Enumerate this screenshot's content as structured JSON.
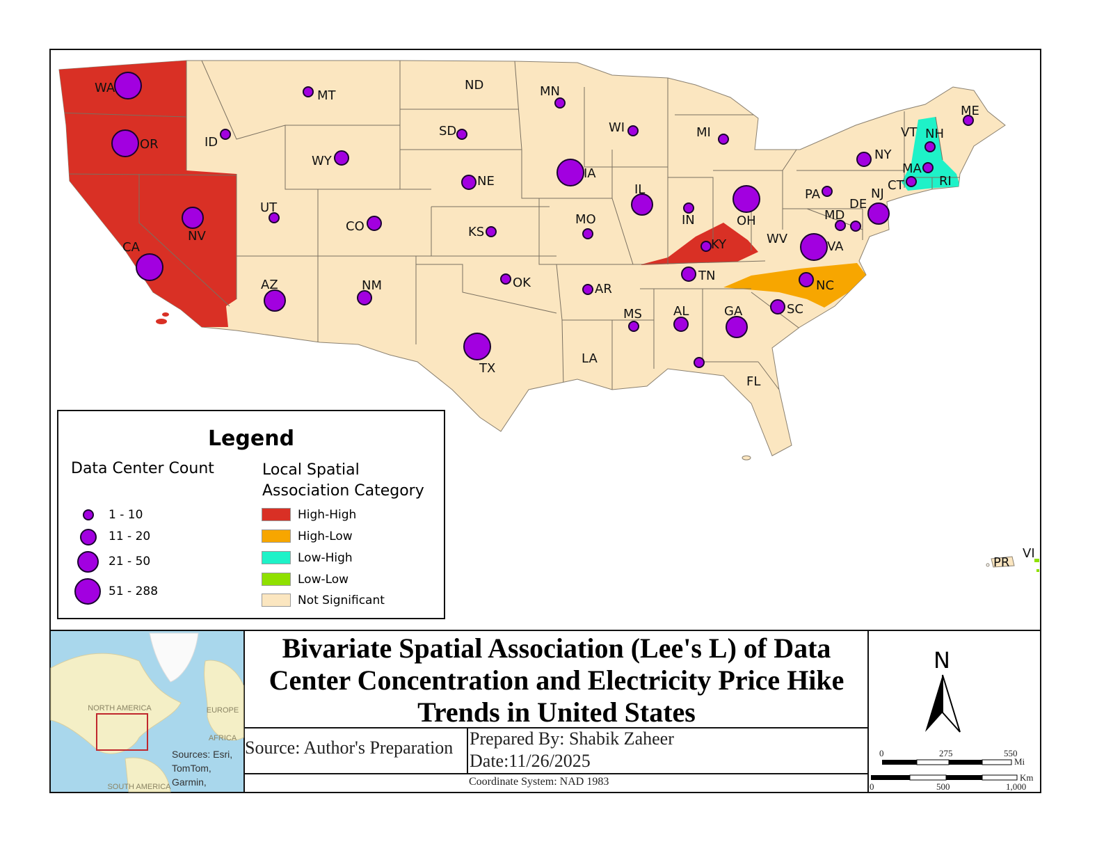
{
  "map": {
    "title": "Bivariate Spatial Association (Lee's L) of Data Center Concentration and Electricity Price Hike Trends in United States",
    "colors": {
      "High-High": "#d93025",
      "High-Low": "#f7a600",
      "Low-High": "#1ef2c8",
      "Low-Low": "#8fe000",
      "Not Significant": "#fbe6c0",
      "symbol_fill": "#a200e0"
    },
    "states": [
      {
        "abbr": "WA",
        "count_class": "51 - 288",
        "category": "High-High"
      },
      {
        "abbr": "OR",
        "count_class": "51 - 288",
        "category": "High-High"
      },
      {
        "abbr": "CA",
        "count_class": "51 - 288",
        "category": "High-High"
      },
      {
        "abbr": "NV",
        "count_class": "21 - 50",
        "category": "High-High"
      },
      {
        "abbr": "ID",
        "count_class": "1 - 10",
        "category": "Not Significant"
      },
      {
        "abbr": "MT",
        "count_class": "1 - 10",
        "category": "Not Significant"
      },
      {
        "abbr": "WY",
        "count_class": "11 - 20",
        "category": "Not Significant"
      },
      {
        "abbr": "UT",
        "count_class": "1 - 10",
        "category": "Not Significant"
      },
      {
        "abbr": "CO",
        "count_class": "11 - 20",
        "category": "Not Significant"
      },
      {
        "abbr": "AZ",
        "count_class": "21 - 50",
        "category": "Not Significant"
      },
      {
        "abbr": "NM",
        "count_class": "11 - 20",
        "category": "Not Significant"
      },
      {
        "abbr": "ND",
        "count_class": null,
        "category": "Not Significant"
      },
      {
        "abbr": "SD",
        "count_class": "1 - 10",
        "category": "Not Significant"
      },
      {
        "abbr": "NE",
        "count_class": "11 - 20",
        "category": "Not Significant"
      },
      {
        "abbr": "KS",
        "count_class": "1 - 10",
        "category": "Not Significant"
      },
      {
        "abbr": "OK",
        "count_class": "1 - 10",
        "category": "Not Significant"
      },
      {
        "abbr": "TX",
        "count_class": "51 - 288",
        "category": "Not Significant"
      },
      {
        "abbr": "MN",
        "count_class": "1 - 10",
        "category": "Not Significant"
      },
      {
        "abbr": "IA",
        "count_class": "51 - 288",
        "category": "Not Significant"
      },
      {
        "abbr": "MO",
        "count_class": "1 - 10",
        "category": "Not Significant"
      },
      {
        "abbr": "AR",
        "count_class": "1 - 10",
        "category": "Not Significant"
      },
      {
        "abbr": "LA",
        "count_class": null,
        "category": "Not Significant"
      },
      {
        "abbr": "WI",
        "count_class": "1 - 10",
        "category": "Not Significant"
      },
      {
        "abbr": "IL",
        "count_class": "21 - 50",
        "category": "Not Significant"
      },
      {
        "abbr": "MI",
        "count_class": "1 - 10",
        "category": "Not Significant"
      },
      {
        "abbr": "IN",
        "count_class": "1 - 10",
        "category": "Not Significant"
      },
      {
        "abbr": "OH",
        "count_class": "51 - 288",
        "category": "Not Significant"
      },
      {
        "abbr": "KY",
        "count_class": "1 - 10",
        "category": "High-High"
      },
      {
        "abbr": "TN",
        "count_class": "11 - 20",
        "category": "Not Significant"
      },
      {
        "abbr": "MS",
        "count_class": "1 - 10",
        "category": "Not Significant"
      },
      {
        "abbr": "AL",
        "count_class": "11 - 20",
        "category": "Not Significant"
      },
      {
        "abbr": "GA",
        "count_class": "21 - 50",
        "category": "Not Significant"
      },
      {
        "abbr": "FL",
        "count_class": "1 - 10",
        "category": "Not Significant"
      },
      {
        "abbr": "SC",
        "count_class": "11 - 20",
        "category": "Not Significant"
      },
      {
        "abbr": "NC",
        "count_class": "11 - 20",
        "category": "High-Low"
      },
      {
        "abbr": "VA",
        "count_class": "51 - 288",
        "category": "Not Significant"
      },
      {
        "abbr": "WV",
        "count_class": null,
        "category": "Not Significant"
      },
      {
        "abbr": "PA",
        "count_class": "1 - 10",
        "category": "Not Significant"
      },
      {
        "abbr": "NY",
        "count_class": "11 - 20",
        "category": "Not Significant"
      },
      {
        "abbr": "NJ",
        "count_class": "21 - 50",
        "category": "Not Significant"
      },
      {
        "abbr": "DE",
        "count_class": "1 - 10",
        "category": "Not Significant"
      },
      {
        "abbr": "MD",
        "count_class": "1 - 10",
        "category": "Not Significant"
      },
      {
        "abbr": "VT",
        "count_class": null,
        "category": "Not Significant"
      },
      {
        "abbr": "NH",
        "count_class": "1 - 10",
        "category": "Low-High"
      },
      {
        "abbr": "MA",
        "count_class": "1 - 10",
        "category": "Low-High"
      },
      {
        "abbr": "CT",
        "count_class": "1 - 10",
        "category": "Low-High"
      },
      {
        "abbr": "RI",
        "count_class": null,
        "category": "Low-High"
      },
      {
        "abbr": "ME",
        "count_class": "1 - 10",
        "category": "Not Significant"
      },
      {
        "abbr": "PR",
        "count_class": null,
        "category": "Not Significant"
      },
      {
        "abbr": "VI",
        "count_class": null,
        "category": "Low-Low"
      }
    ]
  },
  "legend": {
    "title": "Legend",
    "count_heading": "Data Center Count",
    "count_classes": [
      "1 - 10",
      "11 - 20",
      "21 - 50",
      "51 - 288"
    ],
    "category_heading": "Local Spatial Association Category",
    "categories": [
      "High-High",
      "High-Low",
      "Low-High",
      "Low-Low",
      "Not Significant"
    ]
  },
  "inset": {
    "labels": [
      "NORTH AMERICA",
      "EUROPE",
      "AFRICA",
      "SOUTH AMERICA"
    ],
    "attribution": "Sources: Esri, TomTom, Garmin,"
  },
  "footer": {
    "source": "Source: Author's Preparation",
    "prepared_by": "Prepared By: Shabik Zaheer",
    "date": "Date:11/26/2025",
    "coordinate_system": "Coordinate System: NAD 1983"
  },
  "north_arrow": {
    "label": "N"
  },
  "scale_bars": {
    "miles": {
      "ticks": [
        "0",
        "275",
        "550"
      ],
      "unit": "Mi"
    },
    "km": {
      "ticks": [
        "0",
        "500",
        "1,000"
      ],
      "unit": "Km"
    }
  }
}
